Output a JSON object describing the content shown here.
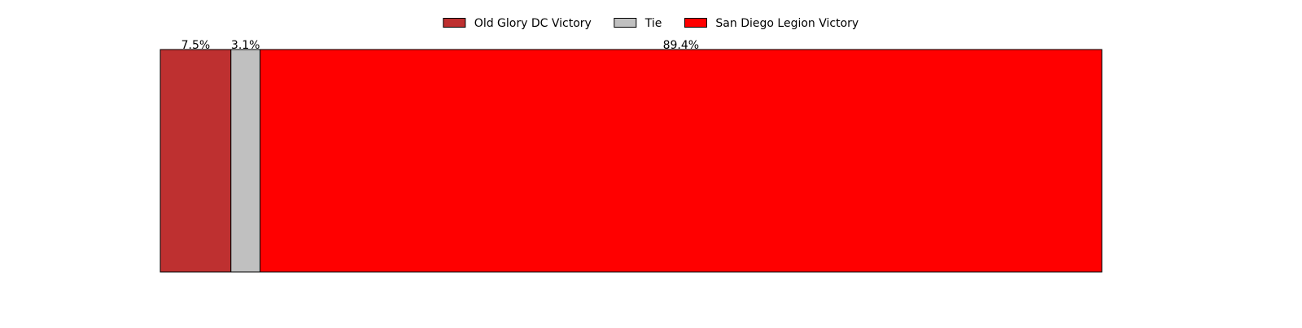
{
  "chart_data": {
    "type": "bar",
    "orientation": "horizontal-stacked",
    "categories": [
      ""
    ],
    "series": [
      {
        "name": "Old Glory DC Victory",
        "values": [
          7.5
        ],
        "label": "7.5%",
        "color": "#be3030"
      },
      {
        "name": "Tie",
        "values": [
          3.1
        ],
        "label": "3.1%",
        "color": "#c0c0c0"
      },
      {
        "name": "San Diego Legion Victory",
        "values": [
          89.4
        ],
        "label": "89.4%",
        "color": "#ff0000"
      }
    ],
    "xlim": [
      0,
      100
    ],
    "title": "",
    "xlabel": "",
    "ylabel": "",
    "grid": false,
    "axes_visible": false,
    "legend_position": "top-center"
  }
}
